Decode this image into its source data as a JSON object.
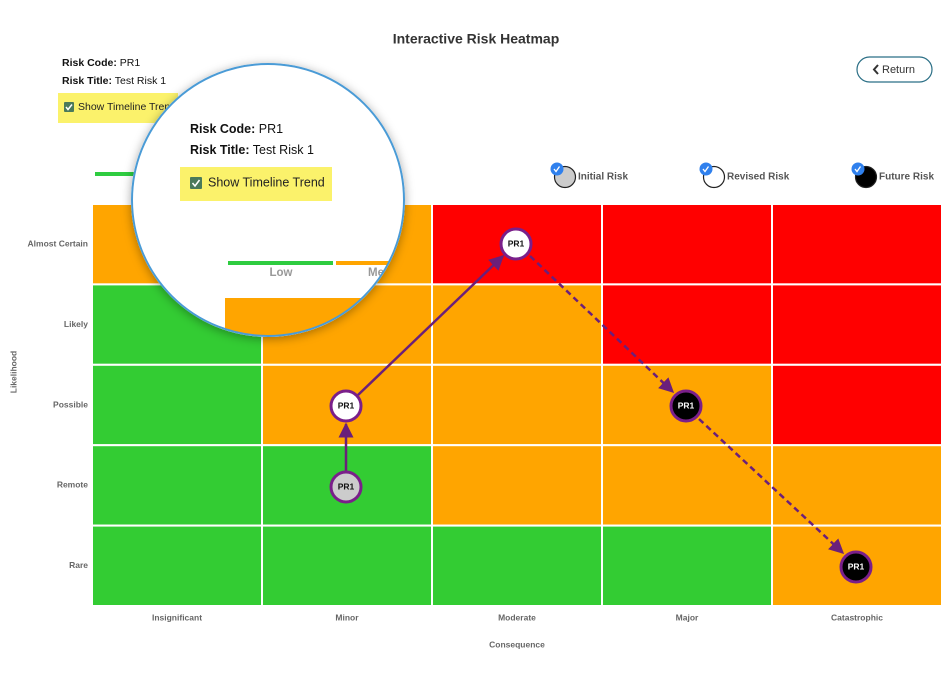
{
  "header": {
    "title": "Interactive Risk Heatmap"
  },
  "risk": {
    "code_label": "Risk Code:",
    "code": "PR1",
    "title_label": "Risk Title:",
    "title": "Test Risk 1"
  },
  "timeline_toggle": {
    "label": "Show Timeline Trend",
    "checked": true
  },
  "return_button": "Return",
  "legend": [
    "Initial Risk",
    "Revised Risk",
    "Future Risk"
  ],
  "heatmap": {
    "y_label": "Likelihood",
    "x_label": "Consequence",
    "rows": [
      "Almost Certain",
      "Likely",
      "Possible",
      "Remote",
      "Rare"
    ],
    "columns": [
      "Insignificant",
      "Minor",
      "Moderate",
      "Major",
      "Catastrophic"
    ]
  },
  "markers": [
    {
      "label": "PR1"
    },
    {
      "label": "PR1"
    },
    {
      "label": "PR1"
    },
    {
      "label": "PR1"
    },
    {
      "label": "PR1"
    }
  ],
  "severity": [
    "Low",
    "Medium"
  ]
}
